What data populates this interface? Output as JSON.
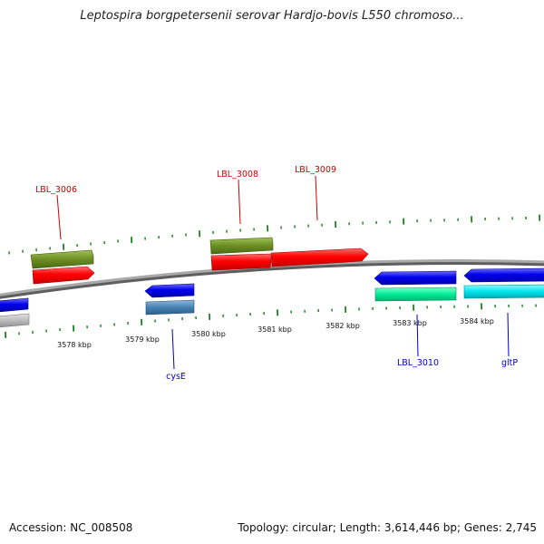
{
  "title": "Leptospira borgpetersenii serovar Hardjo-bovis L550 chromoso...",
  "footer": {
    "accession": "Accession: NC_008508",
    "summary": "Topology: circular; Length: 3,614,446 bp; Genes: 2,745"
  },
  "tick_labels": [
    "3578 kbp",
    "3579 kbp",
    "3580 kbp",
    "3581 kbp",
    "3582 kbp",
    "3583 kbp",
    "3584 kbp"
  ],
  "gene_labels": {
    "top": [
      "LBL_3006",
      "LBL_3008",
      "LBL_3009"
    ],
    "bottom": [
      "cysE",
      "LBL_3010",
      "gltP"
    ]
  },
  "colors": {
    "backbone": "#8c8c8c",
    "olive_feature": "#6b8e23",
    "red_feature": "#ff0000",
    "blue_feature": "#0000ee",
    "steel_feature": "#4682b4",
    "spring_green_feature": "#00ee99",
    "cyan_feature": "#00e5ee",
    "gray_feature": "#bbbbbb",
    "tick": "#007700",
    "top_label": "#cc0000",
    "bottom_label": "#0000bb"
  }
}
